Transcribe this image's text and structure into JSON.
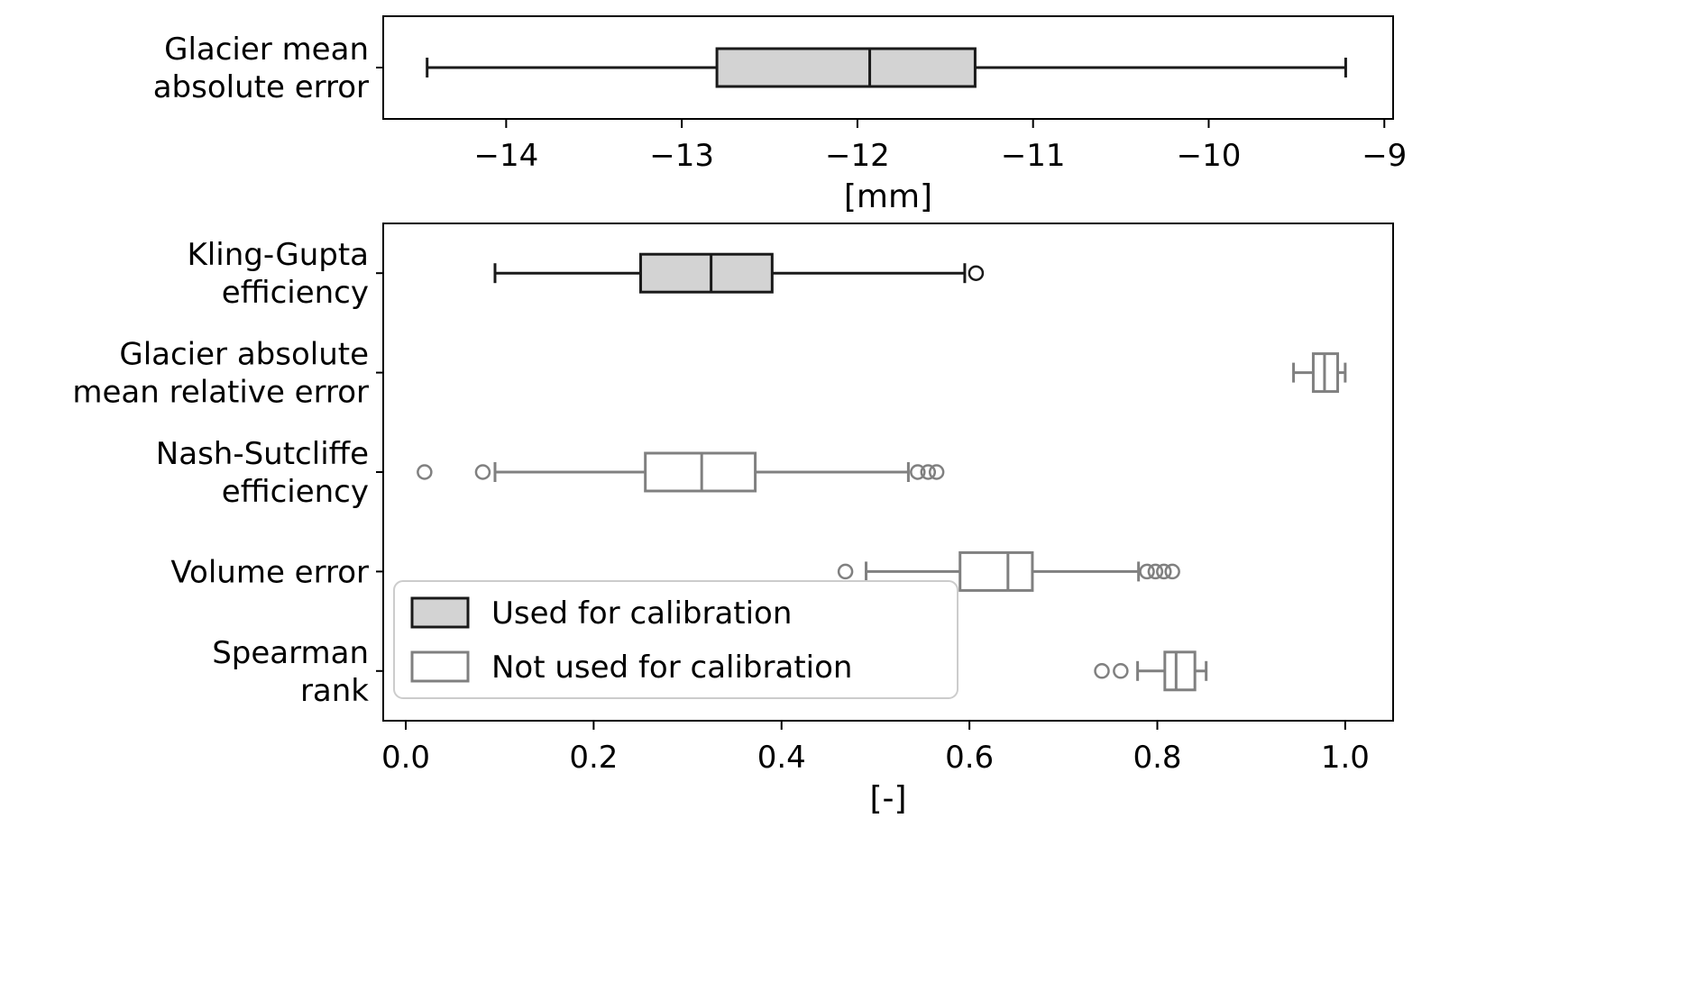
{
  "figure": {
    "background": "#ffffff"
  },
  "styles": {
    "calibration": {
      "fill": "#d3d3d3",
      "edge": "#1a1a1a"
    },
    "validation": {
      "fill": "#ffffff",
      "edge": "#808080"
    }
  },
  "legend": {
    "items": [
      {
        "label": "Used for calibration",
        "style": "calibration"
      },
      {
        "label": "Not used for calibration",
        "style": "validation"
      }
    ]
  },
  "chart_data": [
    {
      "type": "boxplot",
      "orientation": "horizontal",
      "title": "",
      "xlabel": "[mm]",
      "xlim": [
        -14.7,
        -8.95
      ],
      "xticks": [
        {
          "value": -14,
          "label": "−14"
        },
        {
          "value": -13,
          "label": "−13"
        },
        {
          "value": -12,
          "label": "−12"
        },
        {
          "value": -11,
          "label": "−11"
        },
        {
          "value": -10,
          "label": "−10"
        },
        {
          "value": -9,
          "label": "−9"
        }
      ],
      "rows": [
        {
          "category_lines": [
            "Glacier mean",
            "absolute error"
          ],
          "style": "calibration",
          "whisker_low": -14.45,
          "q1": -12.8,
          "median": -11.93,
          "q3": -11.33,
          "whisker_high": -9.22,
          "outliers": []
        }
      ],
      "show_legend": false
    },
    {
      "type": "boxplot",
      "orientation": "horizontal",
      "title": "",
      "xlabel": "[-]",
      "xlim": [
        -0.024,
        1.051
      ],
      "xticks": [
        {
          "value": 0.0,
          "label": "0.0"
        },
        {
          "value": 0.2,
          "label": "0.2"
        },
        {
          "value": 0.4,
          "label": "0.4"
        },
        {
          "value": 0.6,
          "label": "0.6"
        },
        {
          "value": 0.8,
          "label": "0.8"
        },
        {
          "value": 1.0,
          "label": "1.0"
        }
      ],
      "rows": [
        {
          "category_lines": [
            "Kling-Gupta",
            "efficiency"
          ],
          "style": "calibration",
          "whisker_low": 0.095,
          "q1": 0.25,
          "median": 0.325,
          "q3": 0.39,
          "whisker_high": 0.595,
          "outliers": [
            0.607
          ]
        },
        {
          "category_lines": [
            "Glacier absolute",
            "mean relative error"
          ],
          "style": "validation",
          "whisker_low": 0.945,
          "q1": 0.966,
          "median": 0.978,
          "q3": 0.992,
          "whisker_high": 1.0,
          "outliers": []
        },
        {
          "category_lines": [
            "Nash-Sutcliffe",
            "efficiency"
          ],
          "style": "validation",
          "whisker_low": 0.095,
          "q1": 0.255,
          "median": 0.315,
          "q3": 0.372,
          "whisker_high": 0.535,
          "outliers": [
            0.02,
            0.082,
            0.545,
            0.556,
            0.565
          ]
        },
        {
          "category_lines": [
            "Volume error"
          ],
          "style": "validation",
          "whisker_low": 0.49,
          "q1": 0.59,
          "median": 0.641,
          "q3": 0.667,
          "whisker_high": 0.78,
          "outliers": [
            0.468,
            0.789,
            0.798,
            0.807,
            0.816
          ]
        },
        {
          "category_lines": [
            "Spearman",
            "rank"
          ],
          "style": "validation",
          "whisker_low": 0.779,
          "q1": 0.808,
          "median": 0.82,
          "q3": 0.84,
          "whisker_high": 0.852,
          "outliers": [
            0.741,
            0.761
          ]
        }
      ],
      "show_legend": true
    }
  ]
}
